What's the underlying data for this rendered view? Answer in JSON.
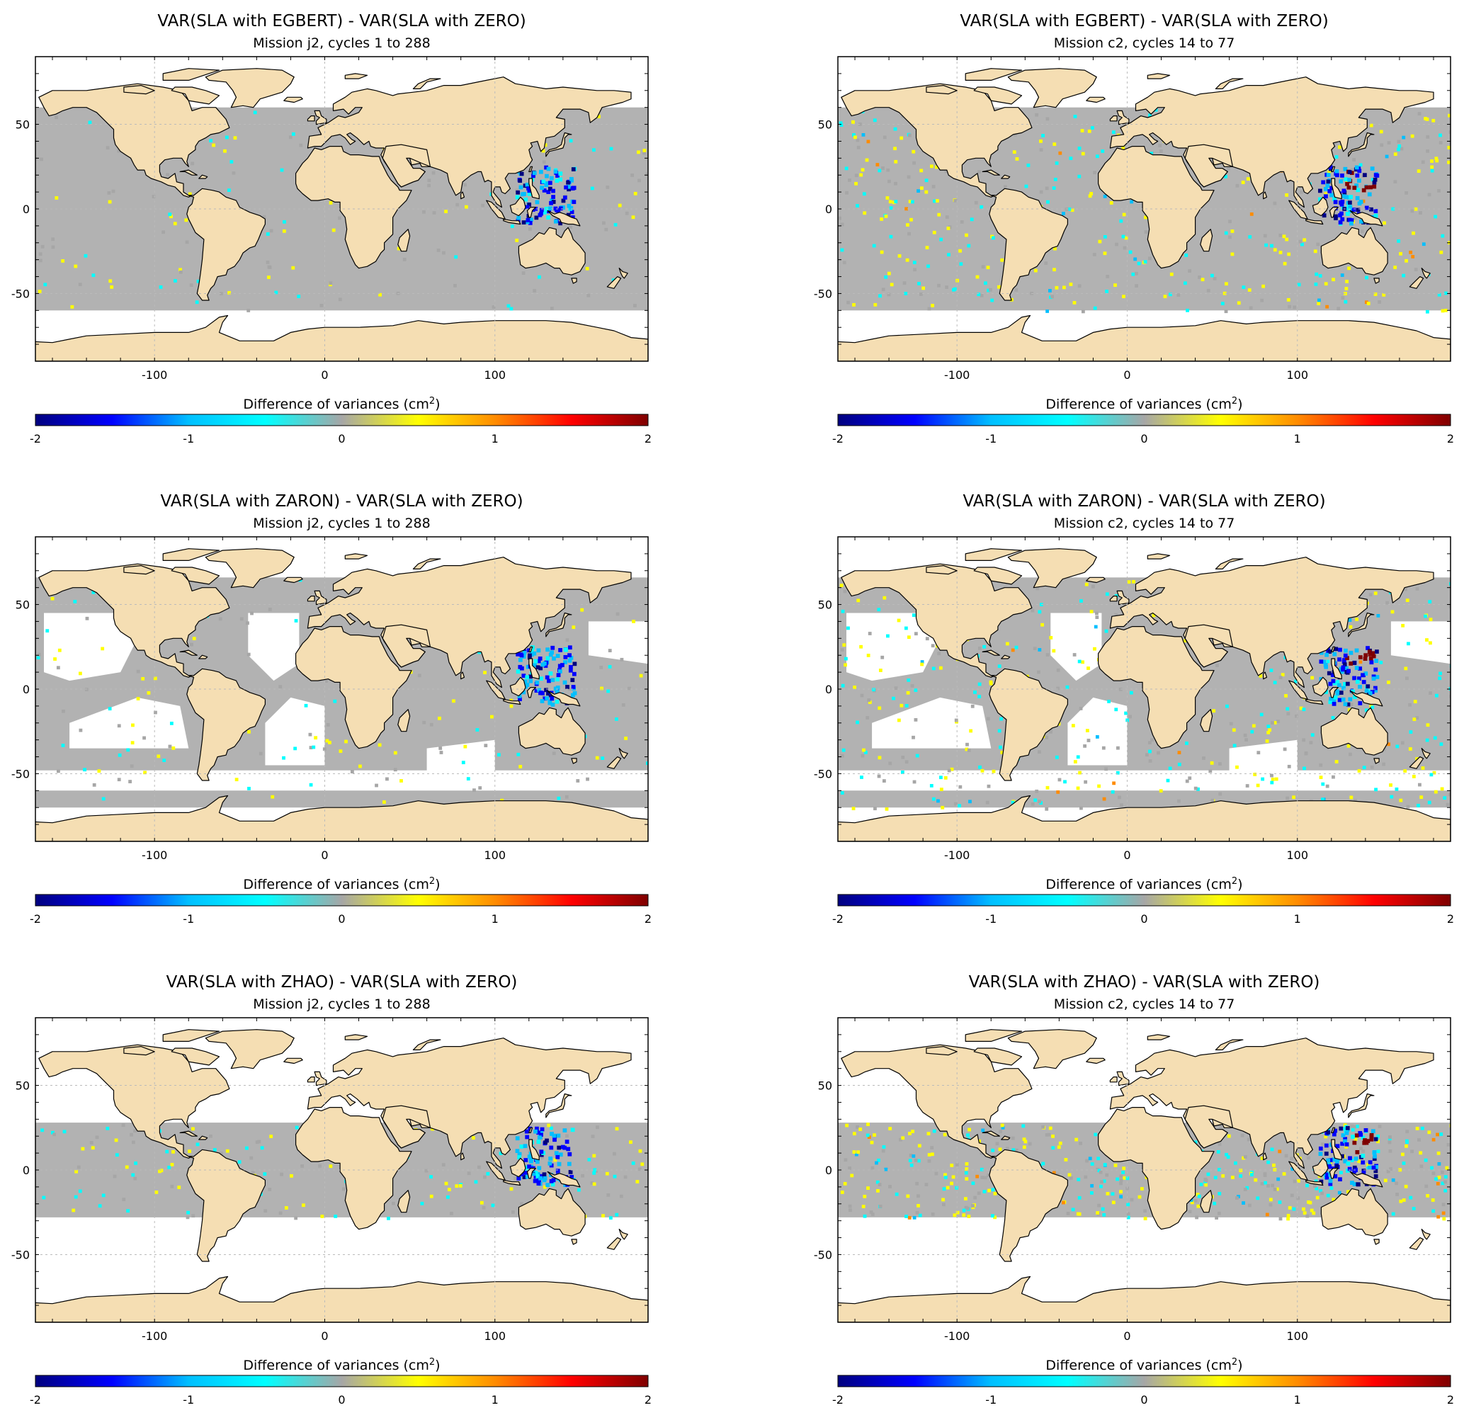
{
  "figure": {
    "colorbar_label": "Difference of variances (cm",
    "colorbar_label_sup": "2",
    "colorbar_label_close": ")",
    "colorbar_ticks": [
      "-2",
      "-1",
      "0",
      "1",
      "2"
    ],
    "x_ticks": [
      "-100",
      "0",
      "100"
    ],
    "y_ticks": [
      "50",
      "0",
      "-50"
    ],
    "colors": {
      "land": "#f5deb3",
      "ocean_data": "#b2b2b2",
      "no_data": "#ffffff",
      "coast": "#000000",
      "grid": "#bbbbbb"
    },
    "colormap": [
      "#00007f",
      "#0000ff",
      "#00bfff",
      "#00ffff",
      "#a6a6a6",
      "#ffff00",
      "#ff8c00",
      "#ff0000",
      "#7f0000"
    ],
    "colormap_range": [
      -2,
      2
    ],
    "panels": [
      {
        "title": "VAR(SLA with EGBERT) - VAR(SLA with ZERO)",
        "subtitle": "Mission j2, cycles 1 to 288",
        "coverage": "lat_band",
        "lat_range": [
          -60,
          60
        ]
      },
      {
        "title": "VAR(SLA with EGBERT) - VAR(SLA with ZERO)",
        "subtitle": "Mission c2, cycles 14 to 77",
        "coverage": "lat_band",
        "lat_range": [
          -60,
          60
        ]
      },
      {
        "title": "VAR(SLA with ZARON) - VAR(SLA with ZERO)",
        "subtitle": "Mission j2, cycles 1 to 288",
        "coverage": "regional_shelves",
        "lat_range": [
          -70,
          66
        ]
      },
      {
        "title": "VAR(SLA with ZARON) - VAR(SLA with ZERO)",
        "subtitle": "Mission c2, cycles 14 to 77",
        "coverage": "regional_shelves",
        "lat_range": [
          -70,
          66
        ]
      },
      {
        "title": "VAR(SLA with ZHAO) - VAR(SLA with ZERO)",
        "subtitle": "Mission j2, cycles 1 to 288",
        "coverage": "lat_band",
        "lat_range": [
          -28,
          28
        ]
      },
      {
        "title": "VAR(SLA with ZHAO) - VAR(SLA with ZERO)",
        "subtitle": "Mission c2, cycles 14 to 77",
        "coverage": "lat_band",
        "lat_range": [
          -28,
          28
        ]
      }
    ]
  }
}
